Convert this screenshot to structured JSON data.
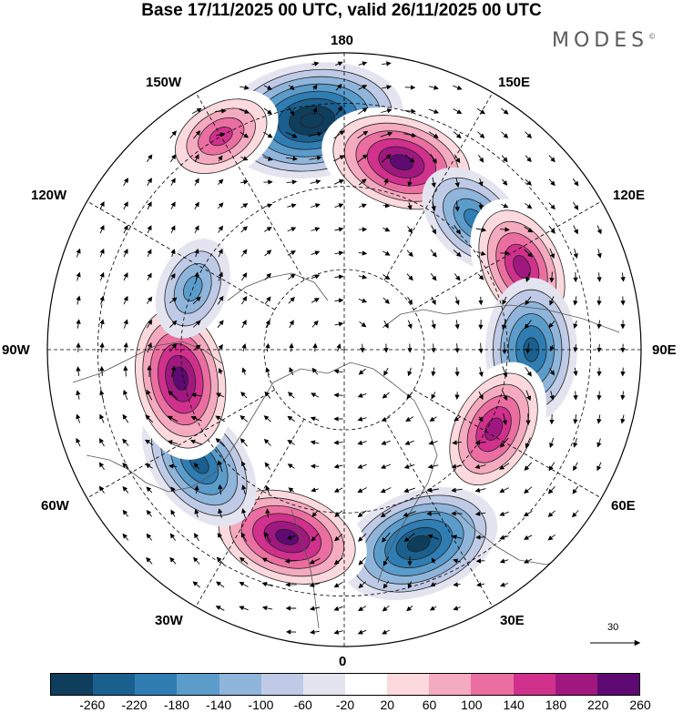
{
  "title": "Base 17/11/2025 00 UTC, valid 26/11/2025 00 UTC",
  "brand": "MODES",
  "brand_mark": "©",
  "longitude_labels": {
    "lon_180": "180",
    "lon_150e": "150E",
    "lon_120e": "120E",
    "lon_90e": "90E",
    "lon_60e": "60E",
    "lon_30e": "30E",
    "lon_0": "0",
    "lon_30w": "30W",
    "lon_60w": "60W",
    "lon_90w": "90W",
    "lon_120w": "120W",
    "lon_150w": "150W"
  },
  "reference_vector": "30",
  "colorbar": {
    "labels": [
      "-260",
      "-220",
      "-180",
      "-140",
      "-100",
      "-60",
      "-20",
      "20",
      "60",
      "100",
      "140",
      "180",
      "220",
      "260"
    ],
    "colors": [
      "#0f3d5c",
      "#1a5f8e",
      "#2f7db3",
      "#5b9ccb",
      "#8fb5db",
      "#bfcbe6",
      "#e4e4f0",
      "#ffffff",
      "#fbd9dc",
      "#f4aabf",
      "#ea6fa0",
      "#d1308d",
      "#a0187f",
      "#5e0a72"
    ]
  },
  "colors": {
    "text": "#000000",
    "brand": "#5a5a5a",
    "graticule": "#000000",
    "coast": "#555555"
  },
  "field_features": [
    {
      "name": "low-north-180",
      "sign": -1,
      "lon": -172,
      "r": 0.78,
      "level": 240
    },
    {
      "name": "high-north-170e",
      "sign": 1,
      "lon": 163,
      "r": 0.66,
      "level": 230
    },
    {
      "name": "low-northeast-135e",
      "sign": -1,
      "lon": 135,
      "r": 0.62,
      "level": 150
    },
    {
      "name": "high-east-115e",
      "sign": 1,
      "lon": 115,
      "r": 0.66,
      "level": 160
    },
    {
      "name": "low-east-90e",
      "sign": -1,
      "lon": 90,
      "r": 0.63,
      "level": 170
    },
    {
      "name": "high-east-62e",
      "sign": 1,
      "lon": 62,
      "r": 0.57,
      "level": 190
    },
    {
      "name": "low-south-20e",
      "sign": -1,
      "lon": 21,
      "r": 0.7,
      "level": 230
    },
    {
      "name": "high-south-15w",
      "sign": 1,
      "lon": -17,
      "r": 0.66,
      "level": 200
    },
    {
      "name": "low-west-50w",
      "sign": -1,
      "lon": -52,
      "r": 0.62,
      "level": 180
    },
    {
      "name": "high-west-80w",
      "sign": 1,
      "lon": -80,
      "r": 0.56,
      "level": 200
    },
    {
      "name": "high-northwest-150w",
      "sign": 1,
      "lon": -150,
      "r": 0.83,
      "level": 140
    },
    {
      "name": "low-northwest-115w",
      "sign": -1,
      "lon": -112,
      "r": 0.55,
      "level": 90
    }
  ]
}
